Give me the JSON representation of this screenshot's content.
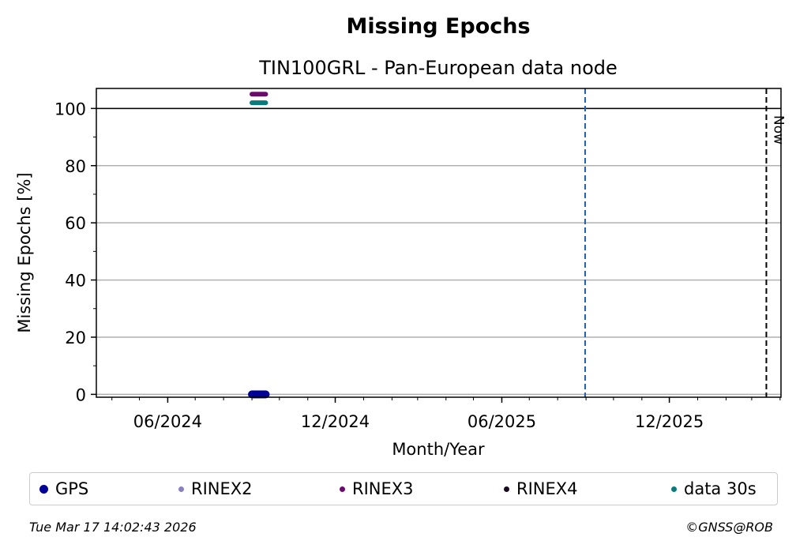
{
  "title": "Missing Epochs",
  "subtitle": "TIN100GRL - Pan-European data node",
  "chart_data": {
    "type": "scatter",
    "title": "Missing Epochs",
    "subtitle": "TIN100GRL - Pan-European data node",
    "xlabel": "Month/Year",
    "ylabel": "Missing Epochs [%]",
    "xlim": [
      "2024-03-15",
      "2026-04-02"
    ],
    "ylim": [
      -1,
      107
    ],
    "x_tick_labels": [
      "06/2024",
      "12/2024",
      "06/2025",
      "12/2025"
    ],
    "x_ticks": [
      "2024-06-01",
      "2024-12-01",
      "2025-06-01",
      "2025-12-01"
    ],
    "y_ticks": [
      0,
      20,
      40,
      60,
      80,
      100
    ],
    "grid": "horizontal",
    "reference_line_y": 100,
    "marker_line": {
      "date": "2025-08-31",
      "style": "dashed",
      "color": "#1f5fad"
    },
    "now_line": {
      "date": "2026-03-17",
      "label": "Now",
      "style": "dashed",
      "color": "#000000"
    },
    "series": [
      {
        "name": "GPS",
        "color": "#000099",
        "x": [
          "2024-09-01",
          "2024-09-16"
        ],
        "values": [
          0,
          0
        ]
      },
      {
        "name": "RINEX2",
        "color": "#8a7fbf",
        "x": [],
        "values": []
      },
      {
        "name": "RINEX3",
        "color": "#6a0a6a",
        "x": [
          "2024-09-01",
          "2024-09-16"
        ],
        "values": [
          105,
          105
        ]
      },
      {
        "name": "RINEX4",
        "color": "#1a0a1f",
        "x": [],
        "values": []
      },
      {
        "name": "data 30s",
        "color": "#0a7a7a",
        "x": [
          "2024-09-01",
          "2024-09-16"
        ],
        "values": [
          102,
          102
        ]
      }
    ],
    "legend_position": "bottom"
  },
  "footer": {
    "timestamp": "Tue Mar 17 14:02:43 2026",
    "copyright": "©GNSS@ROB"
  }
}
